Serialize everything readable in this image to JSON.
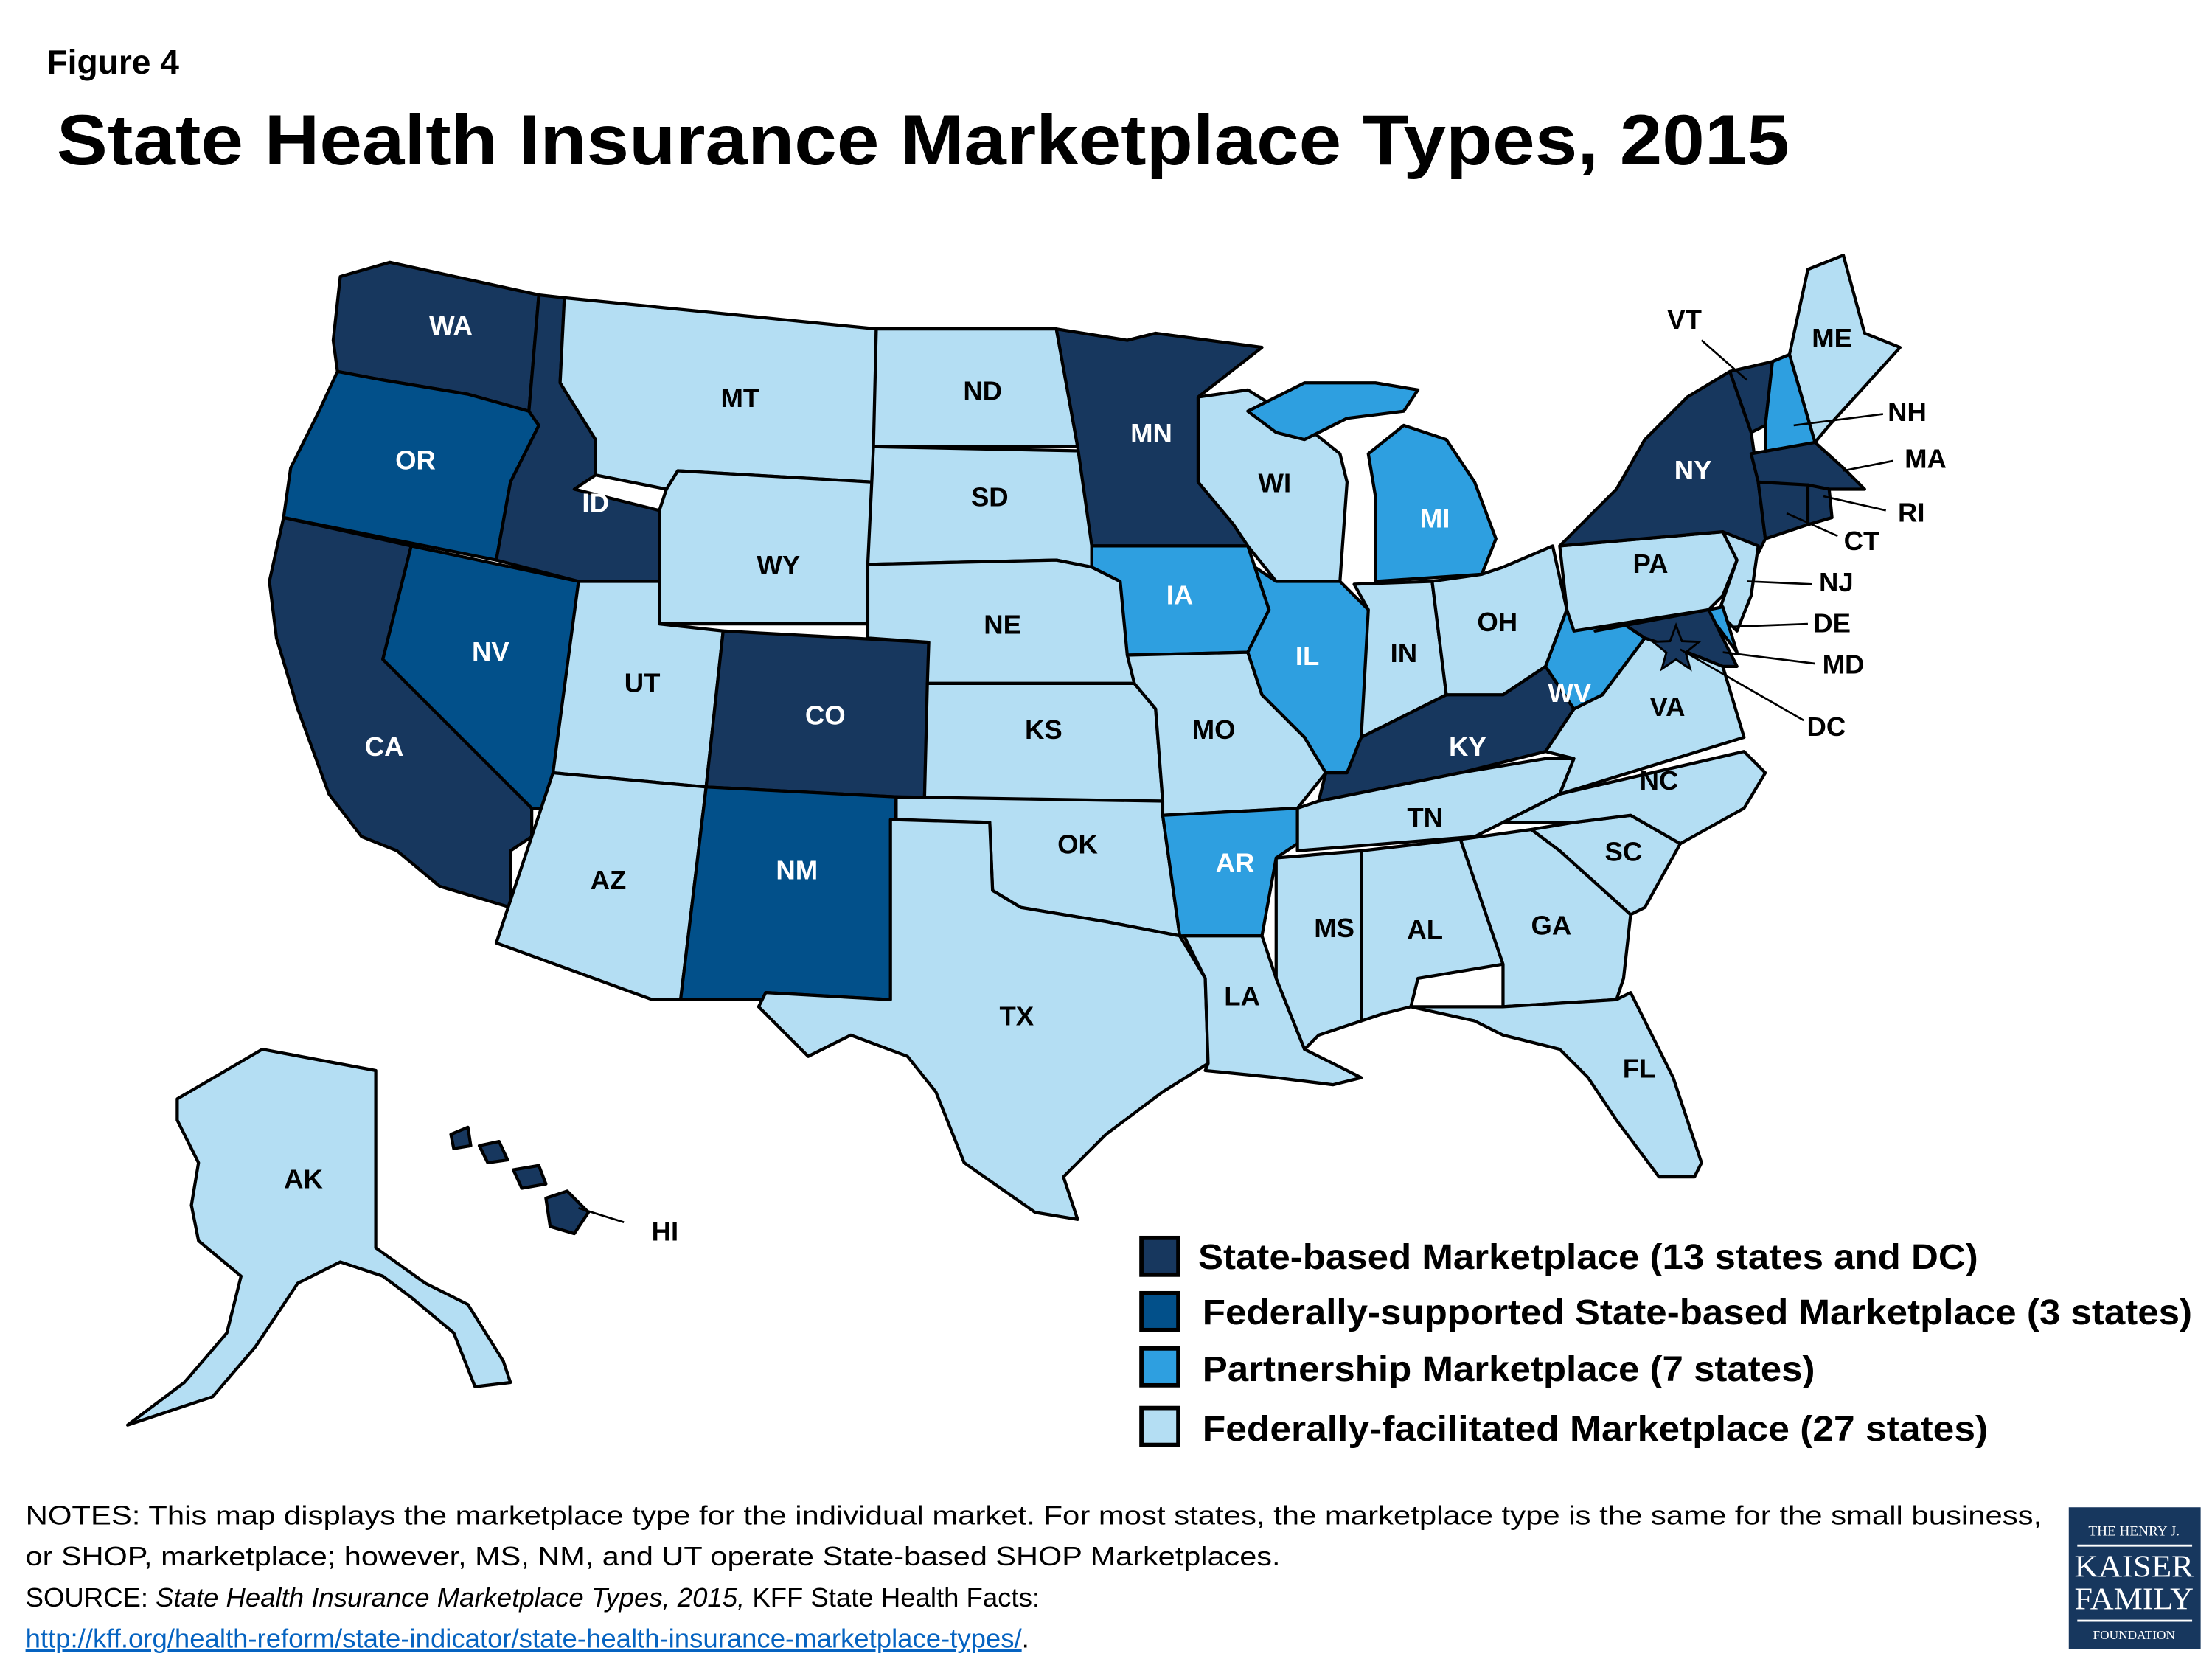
{
  "figure_label": "Figure 4",
  "title": "State Health Insurance Marketplace Types, 2015",
  "colors": {
    "sbm": "#17375E",
    "fssbm": "#02508A",
    "partnership": "#2E9FE0",
    "ffm": "#B4DEF3"
  },
  "legend": [
    {
      "key": "sbm",
      "label": "State-based Marketplace (13 states and DC)"
    },
    {
      "key": "fssbm",
      "label": "Federally-supported State-based Marketplace (3 states)"
    },
    {
      "key": "partnership",
      "label": "Partnership Marketplace (7 states)"
    },
    {
      "key": "ffm",
      "label": "Federally-facilitated Marketplace (27 states)"
    }
  ],
  "states": [
    {
      "abbr": "WA",
      "type": "sbm"
    },
    {
      "abbr": "OR",
      "type": "fssbm"
    },
    {
      "abbr": "CA",
      "type": "sbm"
    },
    {
      "abbr": "NV",
      "type": "fssbm"
    },
    {
      "abbr": "ID",
      "type": "sbm"
    },
    {
      "abbr": "MT",
      "type": "ffm"
    },
    {
      "abbr": "WY",
      "type": "ffm"
    },
    {
      "abbr": "UT",
      "type": "ffm"
    },
    {
      "abbr": "CO",
      "type": "sbm"
    },
    {
      "abbr": "AZ",
      "type": "ffm"
    },
    {
      "abbr": "NM",
      "type": "fssbm"
    },
    {
      "abbr": "ND",
      "type": "ffm"
    },
    {
      "abbr": "SD",
      "type": "ffm"
    },
    {
      "abbr": "NE",
      "type": "ffm"
    },
    {
      "abbr": "KS",
      "type": "ffm"
    },
    {
      "abbr": "OK",
      "type": "ffm"
    },
    {
      "abbr": "TX",
      "type": "ffm"
    },
    {
      "abbr": "MN",
      "type": "sbm"
    },
    {
      "abbr": "IA",
      "type": "partnership"
    },
    {
      "abbr": "MO",
      "type": "ffm"
    },
    {
      "abbr": "AR",
      "type": "partnership"
    },
    {
      "abbr": "LA",
      "type": "ffm"
    },
    {
      "abbr": "WI",
      "type": "ffm"
    },
    {
      "abbr": "IL",
      "type": "partnership"
    },
    {
      "abbr": "MI",
      "type": "partnership"
    },
    {
      "abbr": "IN",
      "type": "ffm"
    },
    {
      "abbr": "OH",
      "type": "ffm"
    },
    {
      "abbr": "KY",
      "type": "sbm"
    },
    {
      "abbr": "TN",
      "type": "ffm"
    },
    {
      "abbr": "MS",
      "type": "ffm"
    },
    {
      "abbr": "AL",
      "type": "ffm"
    },
    {
      "abbr": "GA",
      "type": "ffm"
    },
    {
      "abbr": "FL",
      "type": "ffm"
    },
    {
      "abbr": "SC",
      "type": "ffm"
    },
    {
      "abbr": "NC",
      "type": "ffm"
    },
    {
      "abbr": "VA",
      "type": "ffm"
    },
    {
      "abbr": "WV",
      "type": "partnership"
    },
    {
      "abbr": "PA",
      "type": "ffm"
    },
    {
      "abbr": "NY",
      "type": "sbm"
    },
    {
      "abbr": "ME",
      "type": "ffm"
    },
    {
      "abbr": "VT",
      "type": "sbm"
    },
    {
      "abbr": "NH",
      "type": "partnership"
    },
    {
      "abbr": "MA",
      "type": "sbm"
    },
    {
      "abbr": "RI",
      "type": "sbm"
    },
    {
      "abbr": "CT",
      "type": "sbm"
    },
    {
      "abbr": "NJ",
      "type": "ffm"
    },
    {
      "abbr": "DE",
      "type": "partnership"
    },
    {
      "abbr": "MD",
      "type": "sbm"
    },
    {
      "abbr": "DC",
      "type": "sbm"
    },
    {
      "abbr": "AK",
      "type": "ffm"
    },
    {
      "abbr": "HI",
      "type": "sbm"
    }
  ],
  "notes": {
    "line1": "NOTES: This map displays the marketplace type for the individual market. For most states, the marketplace type is the same for the small business,",
    "line2": "or SHOP, marketplace; however, MS, NM, and UT operate State-based SHOP Marketplaces.",
    "source_prefix": "SOURCE: ",
    "source_title": "State Health Insurance Marketplace Types, 2015,",
    "source_suffix": " KFF State Health Facts:",
    "link": "http://kff.org/health-reform/state-indicator/state-health-insurance-marketplace-types/",
    "link_end": "."
  },
  "logo": {
    "line1": "THE HENRY J.",
    "line2": "KAISER",
    "line3": "FAMILY",
    "line4": "FOUNDATION"
  }
}
